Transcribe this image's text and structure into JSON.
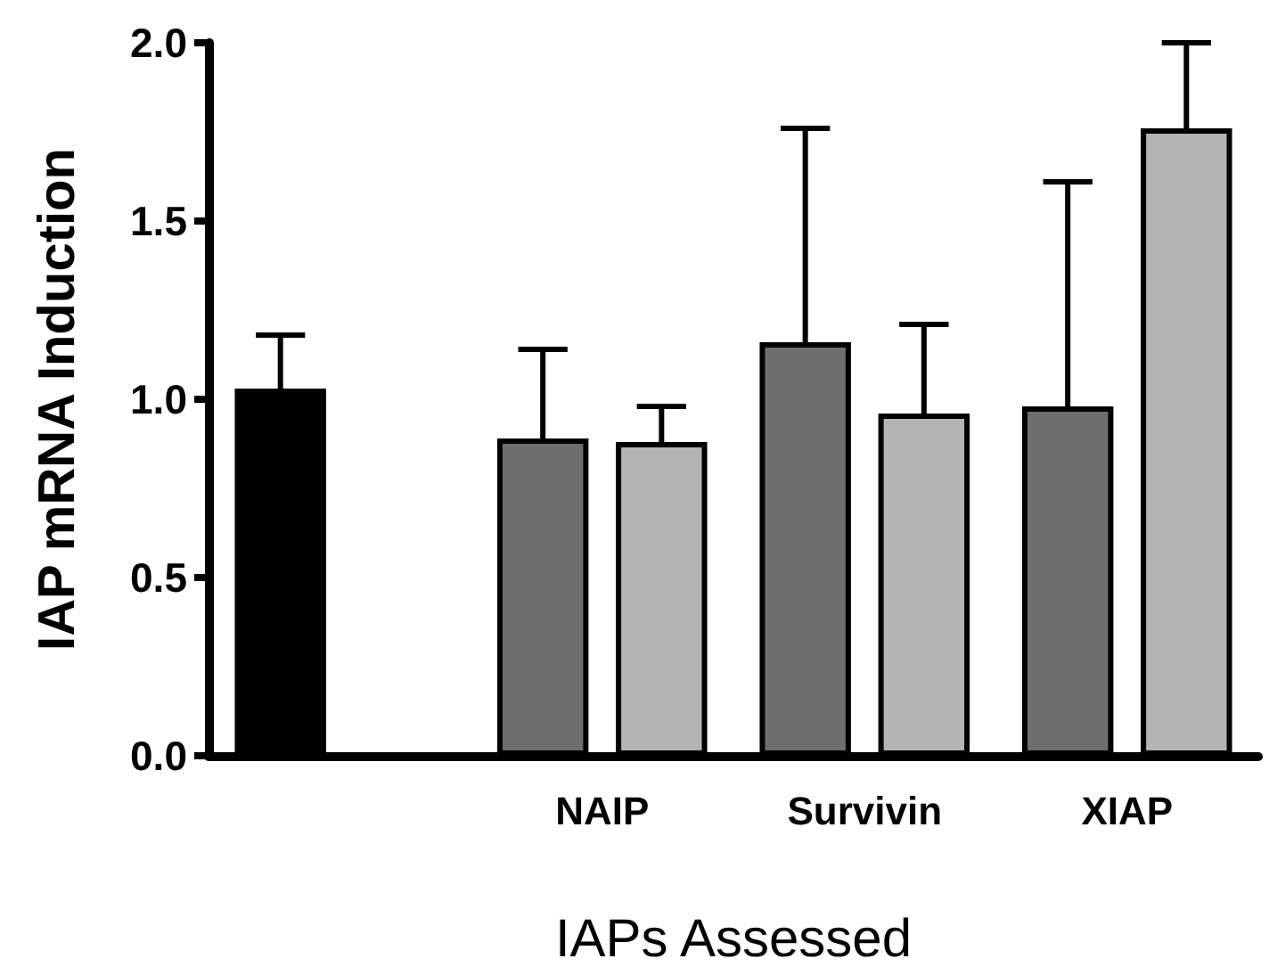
{
  "chart_data": {
    "type": "bar",
    "xlabel": "IAPs Assessed",
    "ylabel": "IAP mRNA Induction",
    "categories": [
      null,
      "NAIP",
      "Survivin",
      "XIAP"
    ],
    "series": [
      {
        "colors": [
          "#000000",
          "#6e6e6e",
          "#6e6e6e",
          "#6e6e6e"
        ],
        "values": [
          1.03,
          0.89,
          1.16,
          0.98
        ],
        "errors": [
          [
            1.03,
            1.18
          ],
          [
            0.89,
            1.14
          ],
          [
            1.16,
            1.76
          ],
          [
            0.98,
            1.61
          ]
        ]
      },
      {
        "color": "#b4b4b4",
        "values": [
          null,
          0.88,
          0.96,
          1.76
        ],
        "errors": [
          null,
          [
            0.88,
            0.98
          ],
          [
            0.96,
            1.21
          ],
          [
            1.76,
            2.0
          ]
        ]
      }
    ],
    "ylim": [
      0,
      2.0
    ],
    "yticks": [
      {
        "value": 0,
        "label": "0.0"
      },
      {
        "value": 0.5,
        "label": "0.5"
      },
      {
        "value": 1,
        "label": "1.0"
      },
      {
        "value": 1.5,
        "label": "1.5"
      },
      {
        "value": 2,
        "label": "2.0"
      }
    ],
    "grid": false
  }
}
